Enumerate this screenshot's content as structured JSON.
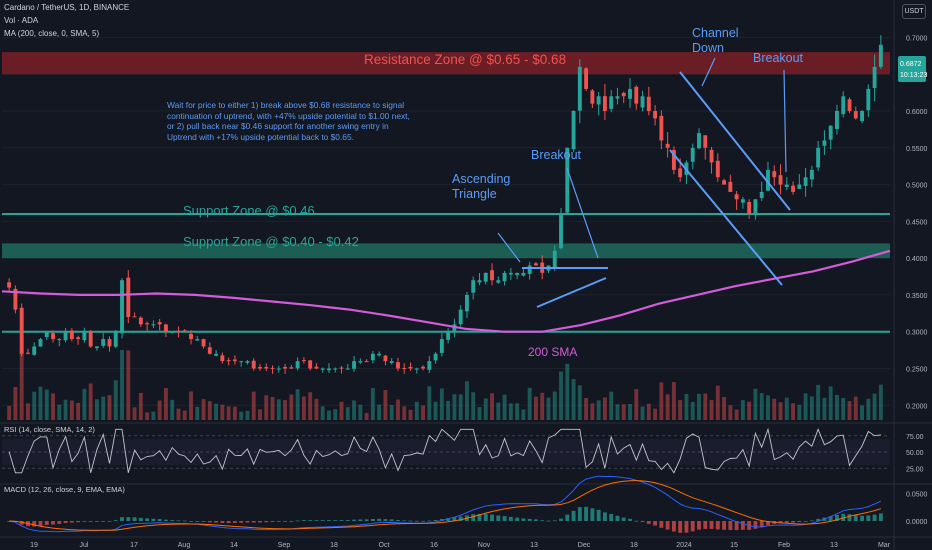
{
  "header": {
    "symbol_line": "Cardano / TetherUS, 1D, BINANCE",
    "vol_line": "Vol · ADA",
    "ma_line": "MA (200, close, 0, SMA, 5)",
    "currency_badge": "USDT"
  },
  "annotations": {
    "resistance_zone": "Resistance Zone @ $0.65 - $0.68",
    "support_046": "Support Zone @ $0.46",
    "support_040": "Support Zone @ $0.40 - $0.42",
    "ascending_triangle": [
      "Ascending",
      "Triangle"
    ],
    "breakout_1": "Breakout",
    "channel_down": [
      "Channel",
      "Down"
    ],
    "breakout_2": "Breakout",
    "sma_label": "200 SMA",
    "note": "Wait for price to either 1) break above $0.68 resistance to signal continuation of uptrend, with +47% upside potential to $1.00 next, or 2) pull back near $0.46 support for another swing entry in Uptrend with +17% upside potential back to $0.65."
  },
  "colors": {
    "background": "#131722",
    "up": "#26a69a",
    "down": "#ef5350",
    "resistance_fill": "#7a1e26",
    "support_fill": "#1f6b5c",
    "sma": "#d35cd8",
    "annotation": "#5b9cf6",
    "zone_text_red": "#ef5350",
    "zone_text_green": "#26a69a",
    "sma_text": "#d35cd8"
  },
  "chart_data": {
    "type": "candlestick",
    "price_axis": {
      "ticks": [
        "0.7000",
        "0.6500",
        "0.6000",
        "0.5500",
        "0.5000",
        "0.4500",
        "0.4000",
        "0.3500",
        "0.3000",
        "0.2500",
        "0.2000"
      ],
      "range": [
        0.18,
        0.74
      ],
      "current_price": "0.6872",
      "countdown": "10:13:23"
    },
    "x_axis": {
      "ticks": [
        "19",
        "Jul",
        "17",
        "Aug",
        "14",
        "Sep",
        "18",
        "Oct",
        "16",
        "Nov",
        "13",
        "Dec",
        "18",
        "2024",
        "15",
        "Feb",
        "13",
        "Mar"
      ]
    },
    "zones": [
      {
        "name": "Resistance Zone",
        "low": 0.65,
        "high": 0.68
      },
      {
        "name": "Support Zone",
        "level": 0.46
      },
      {
        "name": "Support Zone",
        "low": 0.4,
        "high": 0.42
      },
      {
        "name": "Support line",
        "level": 0.3
      }
    ],
    "close_series": [
      0.36,
      0.33,
      0.27,
      0.27,
      0.28,
      0.29,
      0.3,
      0.29,
      0.29,
      0.3,
      0.29,
      0.29,
      0.3,
      0.28,
      0.28,
      0.29,
      0.28,
      0.3,
      0.37,
      0.32,
      0.32,
      0.31,
      0.31,
      0.31,
      0.31,
      0.3,
      0.3,
      0.3,
      0.3,
      0.29,
      0.29,
      0.28,
      0.27,
      0.27,
      0.26,
      0.26,
      0.26,
      0.26,
      0.26,
      0.25,
      0.25,
      0.25,
      0.25,
      0.25,
      0.25,
      0.25,
      0.26,
      0.26,
      0.25,
      0.25,
      0.25,
      0.25,
      0.25,
      0.25,
      0.25,
      0.26,
      0.26,
      0.26,
      0.27,
      0.27,
      0.26,
      0.26,
      0.25,
      0.25,
      0.25,
      0.25,
      0.25,
      0.26,
      0.27,
      0.29,
      0.3,
      0.31,
      0.33,
      0.35,
      0.37,
      0.37,
      0.38,
      0.37,
      0.37,
      0.38,
      0.38,
      0.38,
      0.38,
      0.39,
      0.39,
      0.38,
      0.39,
      0.41,
      0.46,
      0.55,
      0.6,
      0.66,
      0.63,
      0.61,
      0.62,
      0.6,
      0.62,
      0.62,
      0.62,
      0.63,
      0.61,
      0.62,
      0.6,
      0.59,
      0.56,
      0.55,
      0.52,
      0.51,
      0.53,
      0.55,
      0.57,
      0.55,
      0.53,
      0.51,
      0.5,
      0.49,
      0.48,
      0.48,
      0.46,
      0.48,
      0.49,
      0.52,
      0.51,
      0.5,
      0.5,
      0.49,
      0.5,
      0.51,
      0.52,
      0.55,
      0.56,
      0.58,
      0.6,
      0.62,
      0.6,
      0.59,
      0.6,
      0.63,
      0.66,
      0.69
    ],
    "sma200": [
      0.355,
      0.352,
      0.35,
      0.35,
      0.352,
      0.35,
      0.346,
      0.341,
      0.336,
      0.33,
      0.322,
      0.313,
      0.304,
      0.3,
      0.3,
      0.309,
      0.322,
      0.338,
      0.35,
      0.362,
      0.372,
      0.382,
      0.395,
      0.41
    ],
    "panes": [
      {
        "name": "RSI (14, close, SMA, 14, 2)",
        "ticks": [
          "75.00",
          "50.00",
          "25.00"
        ],
        "range": [
          10,
          90
        ],
        "band": [
          30,
          70
        ]
      },
      {
        "name": "MACD (12, 26, close, 9, EMA, EMA)",
        "ticks": [
          "0.0500",
          "0.0000"
        ],
        "range": [
          -0.02,
          0.06
        ]
      }
    ]
  }
}
